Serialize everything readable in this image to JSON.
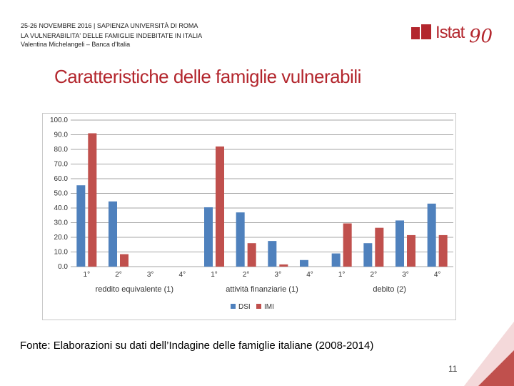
{
  "header": {
    "line1": "25-26 NOVEMBRE 2016 | SAPIENZA UNIVERSITÀ DI ROMA",
    "line2": "LA VULNERABILITA' DELLE FAMIGLIE INDEBITATE IN ITALIA",
    "line3": "Valentina Michelangeli – Banca d'Italia"
  },
  "logo": {
    "brand": "Istat",
    "number": "90"
  },
  "slide_title": "Caratteristiche delle famiglie vulnerabili",
  "source": "Fonte: Elaborazioni su dati dell’Indagine delle famiglie italiane (2008-2014)",
  "page_number": "11",
  "colors": {
    "title": "#b3262d",
    "dsi": "#4f81bd",
    "imi": "#c0504d",
    "accent": "#b3262d"
  },
  "chart_data": {
    "type": "bar",
    "categories": [
      "1°",
      "2°",
      "3°",
      "4°",
      "1°",
      "2°",
      "3°",
      "4°",
      "1°",
      "2°",
      "3°",
      "4°"
    ],
    "groups": [
      {
        "label": "reddito equivalente (1)",
        "span": 4
      },
      {
        "label": "attività finanziarie (1)",
        "span": 4
      },
      {
        "label": "debito (2)",
        "span": 4
      }
    ],
    "series": [
      {
        "name": "DSI",
        "color": "#4f81bd",
        "values": [
          55.5,
          44.5,
          0,
          0,
          40.5,
          37,
          17.5,
          4.5,
          9,
          16,
          31.5,
          43
        ]
      },
      {
        "name": "IMI",
        "color": "#c0504d",
        "values": [
          91,
          8.5,
          0,
          0,
          82,
          16,
          1.5,
          0,
          29.5,
          26.5,
          21.5,
          21.5
        ]
      }
    ],
    "y_ticks": [
      "0.0",
      "10.0",
      "20.0",
      "30.0",
      "40.0",
      "50.0",
      "60.0",
      "70.0",
      "80.0",
      "90.0",
      "100.0"
    ],
    "ylim": [
      0,
      100
    ],
    "legend": [
      "DSI",
      "IMI"
    ],
    "legend_position": "bottom",
    "grid": true
  }
}
